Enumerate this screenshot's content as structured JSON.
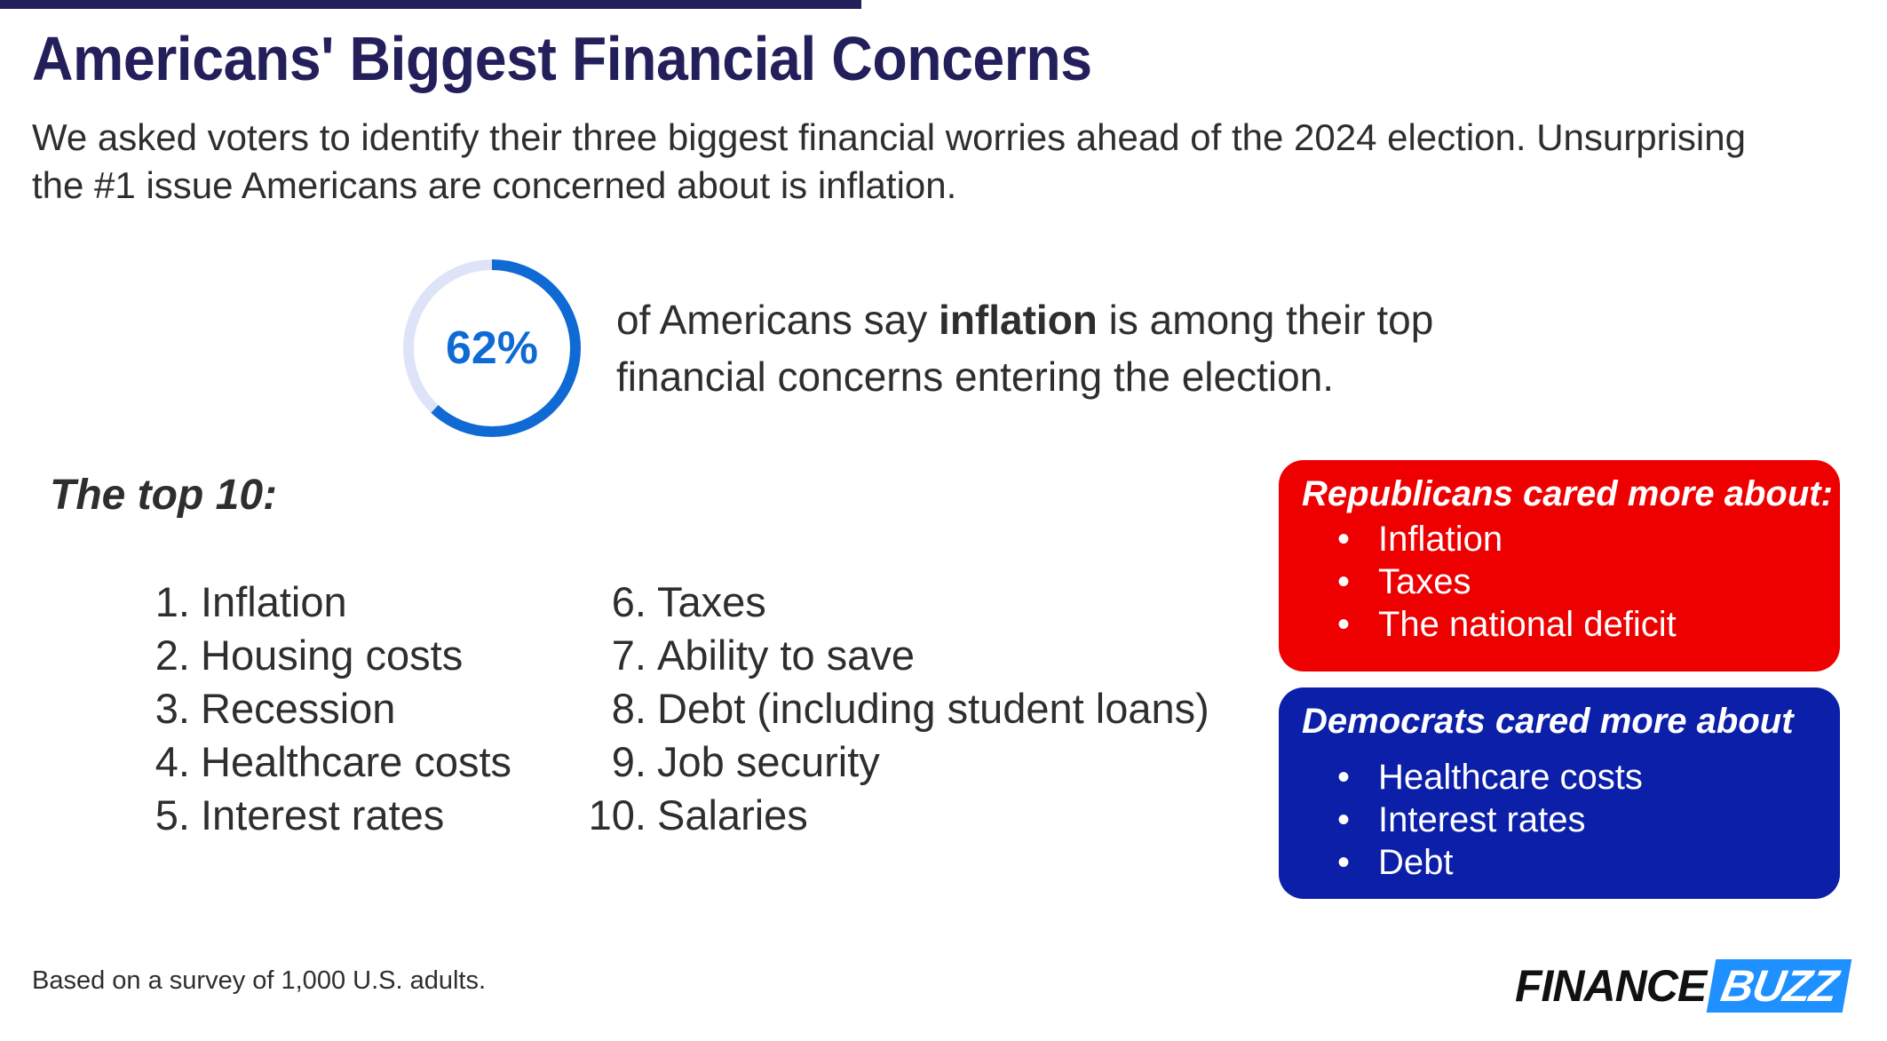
{
  "header": {
    "title": "Americans' Biggest Financial Concerns",
    "subtitle": "We asked voters to identify their three biggest financial worries ahead of the 2024 election. Unsurprising the #1 issue Americans are concerned about is inflation."
  },
  "stat": {
    "label": "62%",
    "value": 0.62,
    "text_before": "of Americans say ",
    "text_bold": "inflation",
    "text_after": " is among their top financial concerns entering the election."
  },
  "top10": {
    "heading": "The top 10:",
    "items": [
      {
        "num": "1.",
        "label": "Inflation"
      },
      {
        "num": "2.",
        "label": "Housing costs"
      },
      {
        "num": "3.",
        "label": "Recession"
      },
      {
        "num": "4.",
        "label": "Healthcare costs"
      },
      {
        "num": "5.",
        "label": "Interest rates"
      },
      {
        "num": "6.",
        "label": "Taxes"
      },
      {
        "num": "7.",
        "label": "Ability to save"
      },
      {
        "num": "8.",
        "label": "Debt (including student loans)"
      },
      {
        "num": "9.",
        "label": "Job security"
      },
      {
        "num": "10.",
        "label": "Salaries"
      }
    ]
  },
  "republicans": {
    "title": "Republicans cared more about:",
    "items": [
      "Inflation",
      "Taxes",
      "The national deficit"
    ]
  },
  "democrats": {
    "title": "Democrats cared more about",
    "items": [
      "Healthcare costs",
      "Interest rates",
      "Debt"
    ]
  },
  "footnote": "Based on a survey of 1,000 U.S. adults.",
  "logo": {
    "part1": "FINANCE",
    "part2": "BUZZ"
  },
  "colors": {
    "title": "#231f5b",
    "ring_fill": "#0f6ad4",
    "ring_track": "#dfe3f8",
    "republican": "#ee0000",
    "democrat": "#0b1fa8",
    "logo_accent": "#1e90ff"
  },
  "chart_data": {
    "type": "pie",
    "values": [
      62,
      38
    ],
    "labels": [
      "62%",
      ""
    ],
    "title": ""
  }
}
